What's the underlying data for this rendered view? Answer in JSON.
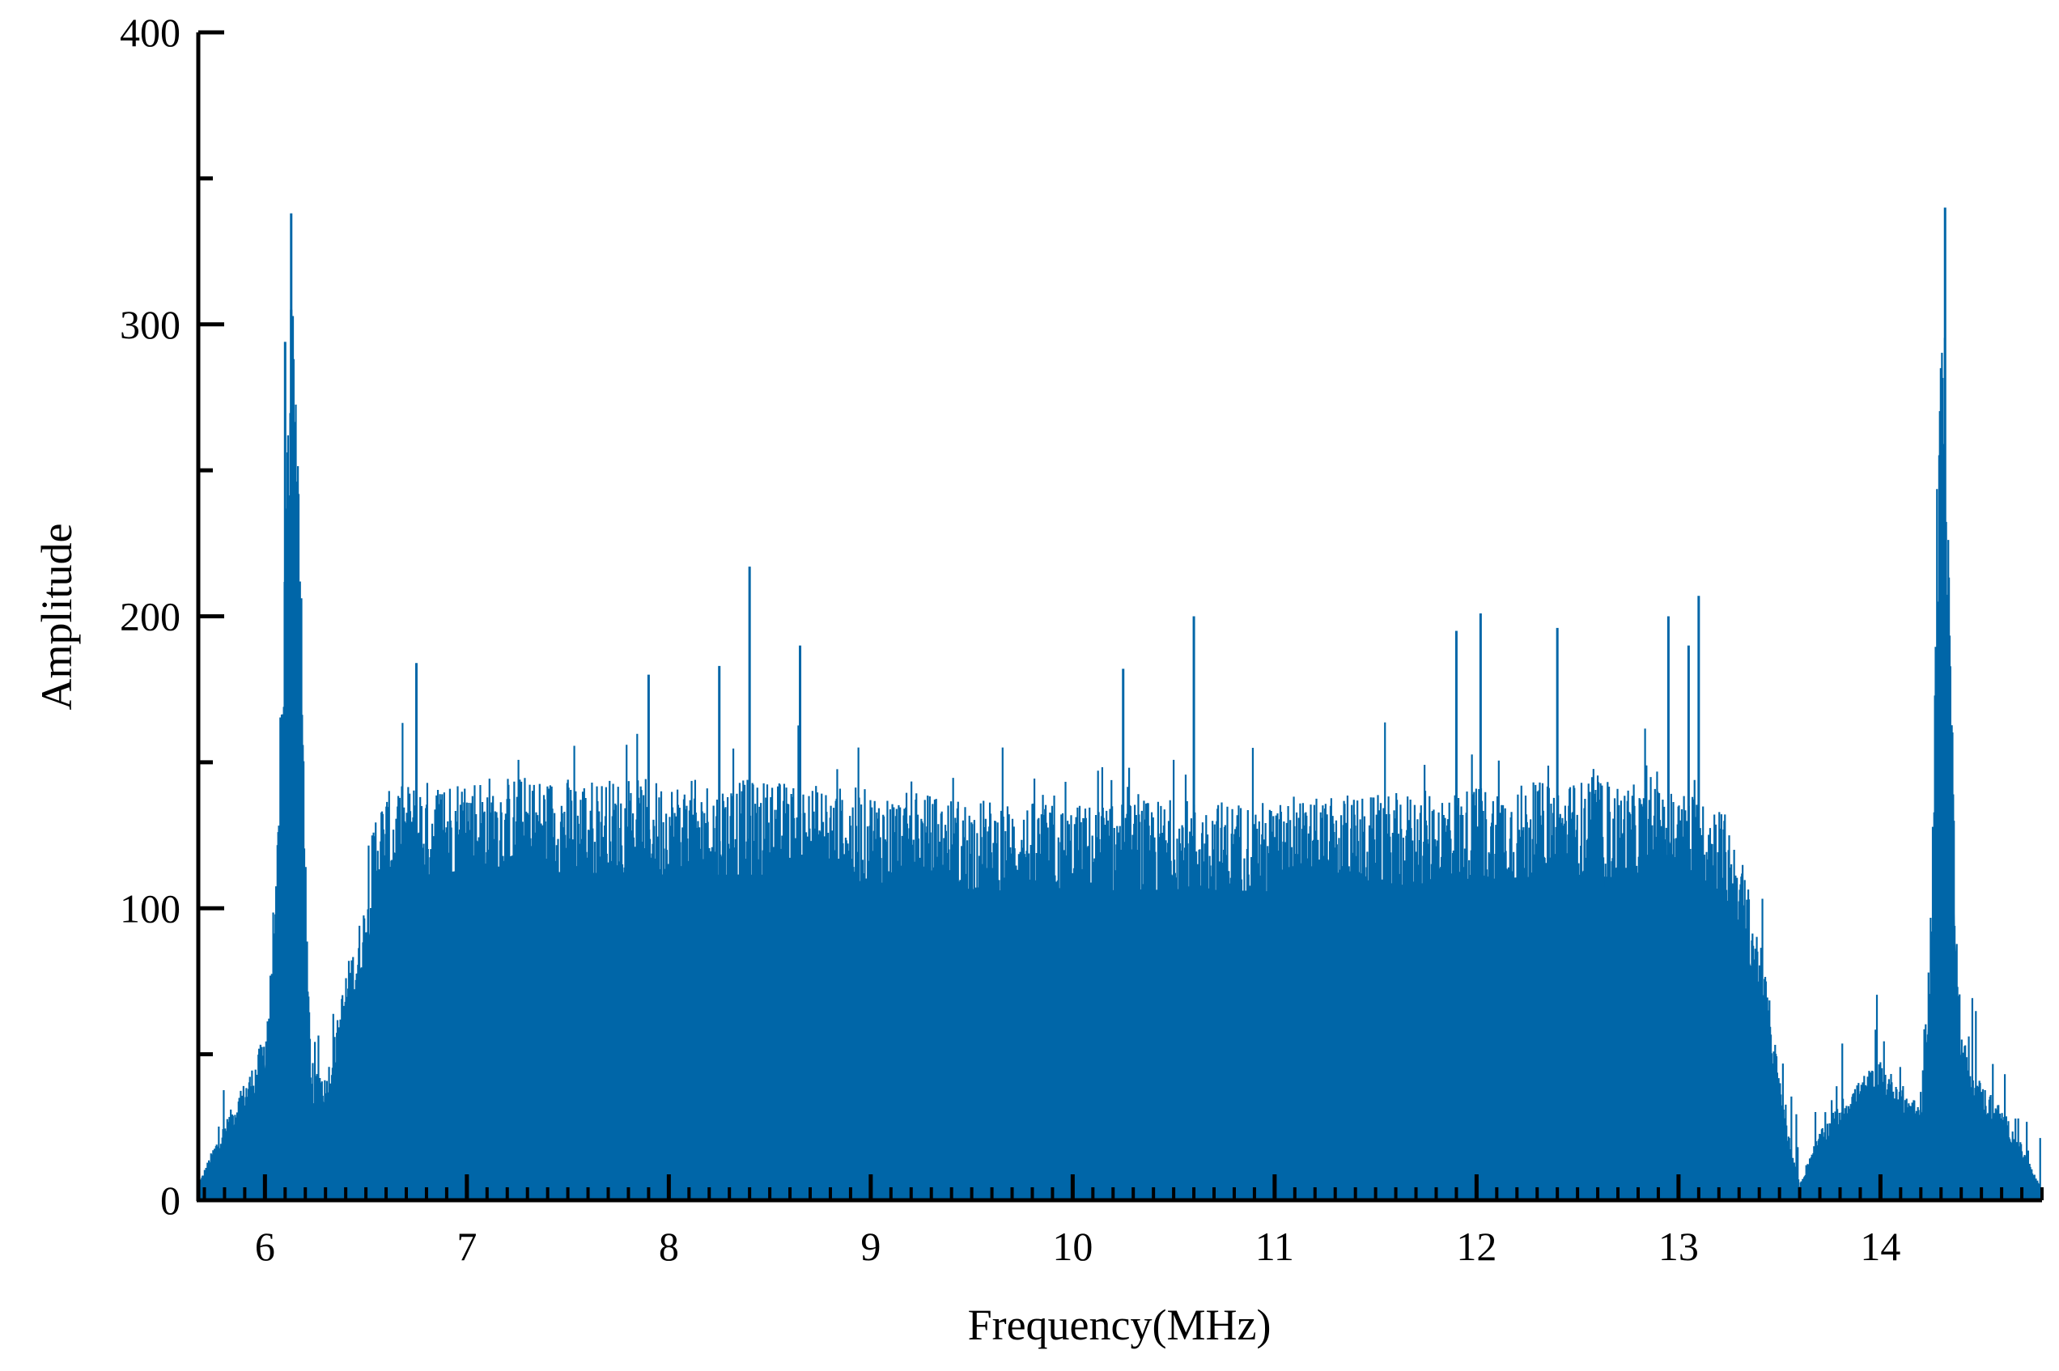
{
  "chart_data": {
    "type": "bar",
    "title": "",
    "xlabel": "Frequency(MHz)",
    "ylabel": "Amplitude",
    "xlim": [
      5.67,
      14.8
    ],
    "ylim": [
      0,
      400
    ],
    "x_ticks": [
      6,
      7,
      8,
      9,
      10,
      11,
      12,
      13,
      14
    ],
    "y_ticks": [
      0,
      100,
      200,
      300,
      400
    ],
    "grid": false,
    "series_color": "#0066A8",
    "envelope_points": {
      "x": [
        5.67,
        5.75,
        5.85,
        5.95,
        6.0,
        6.05,
        6.08,
        6.11,
        6.13,
        6.15,
        6.18,
        6.21,
        6.24,
        6.26,
        6.3,
        6.35,
        6.4,
        6.45,
        6.5,
        6.55,
        6.6,
        6.65,
        6.7,
        7.0,
        7.5,
        8.0,
        8.5,
        9.0,
        9.5,
        10.0,
        10.5,
        11.0,
        11.5,
        12.0,
        12.5,
        13.0,
        13.2,
        13.3,
        13.4,
        13.45,
        13.5,
        13.55,
        13.6,
        13.65,
        13.7,
        13.8,
        13.9,
        14.0,
        14.1,
        14.2,
        14.25,
        14.28,
        14.31,
        14.34,
        14.37,
        14.4,
        14.45,
        14.5,
        14.6,
        14.7,
        14.8
      ],
      "y": [
        5,
        18,
        32,
        45,
        55,
        90,
        160,
        250,
        310,
        295,
        200,
        80,
        28,
        45,
        40,
        55,
        75,
        85,
        100,
        130,
        132,
        133,
        135,
        138,
        137,
        136,
        136,
        133,
        130,
        128,
        130,
        129,
        131,
        134,
        136,
        133,
        130,
        115,
        85,
        65,
        40,
        20,
        5,
        15,
        22,
        32,
        40,
        45,
        38,
        30,
        90,
        220,
        305,
        215,
        110,
        55,
        45,
        38,
        30,
        18,
        3
      ]
    },
    "peaks": [
      {
        "x": 6.13,
        "y": 338
      },
      {
        "x": 14.32,
        "y": 340
      },
      {
        "x": 8.4,
        "y": 217
      },
      {
        "x": 13.1,
        "y": 207
      },
      {
        "x": 12.02,
        "y": 201
      },
      {
        "x": 10.6,
        "y": 200
      },
      {
        "x": 12.95,
        "y": 200
      },
      {
        "x": 11.9,
        "y": 195
      },
      {
        "x": 12.4,
        "y": 196
      },
      {
        "x": 13.05,
        "y": 190
      },
      {
        "x": 8.65,
        "y": 190
      },
      {
        "x": 6.75,
        "y": 184
      },
      {
        "x": 10.25,
        "y": 182
      },
      {
        "x": 8.25,
        "y": 183
      },
      {
        "x": 7.9,
        "y": 180
      },
      {
        "x": 6.13,
        "y": 305
      },
      {
        "x": 6.1,
        "y": 294
      },
      {
        "x": 14.3,
        "y": 285
      }
    ]
  }
}
